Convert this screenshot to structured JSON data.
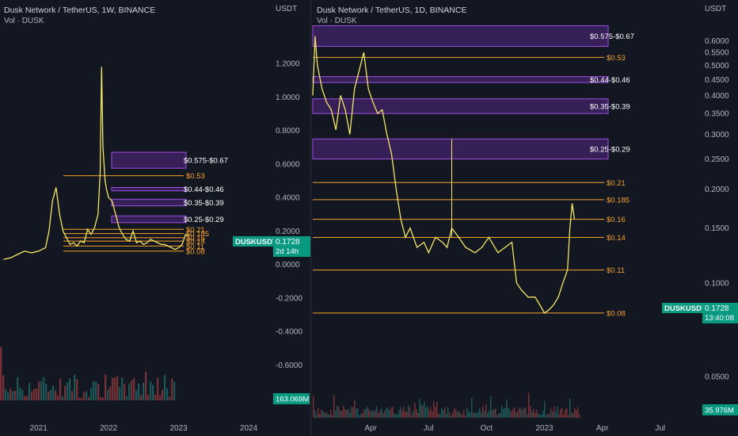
{
  "colors": {
    "background": "#131722",
    "price_line": "#f5e663",
    "level_line": "#f7a127",
    "zone_fill": "#7b2fbe",
    "zone_border": "#9c4fe0",
    "badge": "#089981",
    "vol_up": "#26a69a",
    "vol_down": "#ef5350",
    "axis_text": "#b2b5be"
  },
  "left_chart": {
    "title": "Dusk Network / TetherUS, 1W, BINANCE",
    "subtitle": "Vol · DUSK"
  },
  "right_chart": {
    "title": "Dusk Network / TetherUS, 1D, BINANCE",
    "subtitle": "Vol · DUSK"
  },
  "chart_data": [
    {
      "type": "line",
      "timeframe": "1W",
      "ylabel": "USDT",
      "ylim": [
        -0.65,
        1.3
      ],
      "yticks": [
        1.2,
        1.0,
        0.8,
        0.6,
        0.4,
        0.2,
        0.0,
        -0.2,
        -0.4,
        -0.6
      ],
      "ytick_labels": [
        "1.2000",
        "1.0000",
        "0.8000",
        "0.6000",
        "0.4000",
        "0.2000",
        "0.0000",
        "-0.2000",
        "-0.4000",
        "-0.6000"
      ],
      "xtick_labels": [
        "2021",
        "2022",
        "2023",
        "2024"
      ],
      "x_range": [
        2020.45,
        2024.35
      ],
      "xtick_values": [
        2021.0,
        2022.0,
        2023.0,
        2024.0
      ],
      "series": [
        {
          "x": [
            2020.5,
            2020.6,
            2020.7,
            2020.8,
            2020.9,
            2021.0,
            2021.1,
            2021.15,
            2021.2,
            2021.25,
            2021.3,
            2021.35,
            2021.4,
            2021.45,
            2021.5,
            2021.55,
            2021.6,
            2021.65,
            2021.7,
            2021.75,
            2021.8,
            2021.85,
            2021.88,
            2021.9,
            2021.92,
            2021.95,
            2021.97,
            2022.0,
            2022.05,
            2022.1,
            2022.15,
            2022.2,
            2022.25,
            2022.3,
            2022.35,
            2022.4,
            2022.45,
            2022.5,
            2022.55,
            2022.6,
            2022.65,
            2022.7,
            2022.75,
            2022.8,
            2022.85,
            2022.9,
            2022.95,
            2023.0,
            2023.05,
            2023.1,
            2023.15
          ],
          "values": [
            0.03,
            0.04,
            0.06,
            0.08,
            0.07,
            0.08,
            0.1,
            0.2,
            0.38,
            0.46,
            0.3,
            0.2,
            0.16,
            0.12,
            0.13,
            0.11,
            0.14,
            0.13,
            0.21,
            0.18,
            0.22,
            0.3,
            0.55,
            1.18,
            0.7,
            0.5,
            0.45,
            0.4,
            0.38,
            0.3,
            0.22,
            0.18,
            0.15,
            0.14,
            0.2,
            0.13,
            0.14,
            0.12,
            0.13,
            0.15,
            0.14,
            0.13,
            0.12,
            0.12,
            0.11,
            0.1,
            0.09,
            0.1,
            0.12,
            0.18,
            0.17
          ]
        }
      ],
      "levels": [
        {
          "price": 0.53,
          "label": "$0.53"
        },
        {
          "price": 0.21,
          "label": "$0.21"
        },
        {
          "price": 0.185,
          "label": "$0.185"
        },
        {
          "price": 0.16,
          "label": "$0.16"
        },
        {
          "price": 0.14,
          "label": "$0.14"
        },
        {
          "price": 0.11,
          "label": "$0.11"
        },
        {
          "price": 0.08,
          "label": "$0.08"
        }
      ],
      "zones": [
        {
          "low": 0.575,
          "high": 0.67,
          "label": "$0.575-$0.67"
        },
        {
          "low": 0.44,
          "high": 0.46,
          "label": "$0.44-$0.46"
        },
        {
          "low": 0.35,
          "high": 0.39,
          "label": "$0.35-$0.39"
        },
        {
          "low": 0.25,
          "high": 0.29,
          "label": "$0.25-$0.29"
        }
      ],
      "last_price_badge": {
        "symbol": "DUSKUSDT",
        "price": "0.1728",
        "countdown": "2d 14h"
      },
      "volume_badge": "163.069M"
    },
    {
      "type": "line",
      "timeframe": "1D",
      "ylabel": "USDT",
      "log_scale": true,
      "ylim": [
        0.045,
        0.66
      ],
      "yticks": [
        0.6,
        0.55,
        0.5,
        0.45,
        0.4,
        0.35,
        0.3,
        0.25,
        0.2,
        0.15,
        0.1,
        0.05
      ],
      "ytick_labels": [
        "0.6000",
        "0.5500",
        "0.5000",
        "0.4500",
        "0.4000",
        "0.3500",
        "0.3000",
        "0.2500",
        "0.2000",
        "0.1500",
        "0.1000",
        "0.0500"
      ],
      "xtick_labels": [
        "Apr",
        "Jul",
        "Oct",
        "2023",
        "Apr",
        "Jul"
      ],
      "x_range": [
        2022.0,
        2023.6
      ],
      "xtick_values": [
        2022.25,
        2022.5,
        2022.75,
        2023.0,
        2023.25,
        2023.5
      ],
      "series": [
        {
          "x": [
            2022.0,
            2022.01,
            2022.02,
            2022.04,
            2022.06,
            2022.08,
            2022.1,
            2022.12,
            2022.14,
            2022.16,
            2022.18,
            2022.2,
            2022.22,
            2022.24,
            2022.26,
            2022.28,
            2022.3,
            2022.32,
            2022.34,
            2022.36,
            2022.38,
            2022.4,
            2022.42,
            2022.45,
            2022.48,
            2022.5,
            2022.53,
            2022.56,
            2022.58,
            2022.6,
            2022.63,
            2022.66,
            2022.7,
            2022.73,
            2022.76,
            2022.8,
            2022.83,
            2022.86,
            2022.88,
            2022.9,
            2022.93,
            2022.96,
            2022.98,
            2023.0,
            2023.02,
            2023.04,
            2023.06,
            2023.08,
            2023.1,
            2023.11,
            2023.12,
            2023.13
          ],
          "values": [
            0.4,
            0.62,
            0.5,
            0.42,
            0.38,
            0.36,
            0.31,
            0.4,
            0.36,
            0.3,
            0.42,
            0.48,
            0.55,
            0.42,
            0.38,
            0.35,
            0.36,
            0.3,
            0.26,
            0.2,
            0.16,
            0.14,
            0.15,
            0.13,
            0.135,
            0.125,
            0.14,
            0.135,
            0.13,
            0.15,
            0.14,
            0.13,
            0.125,
            0.13,
            0.14,
            0.125,
            0.13,
            0.135,
            0.1,
            0.095,
            0.09,
            0.09,
            0.085,
            0.08,
            0.082,
            0.085,
            0.09,
            0.1,
            0.11,
            0.15,
            0.18,
            0.16
          ]
        }
      ],
      "spike": {
        "x": 2022.6,
        "high": 0.29
      },
      "levels": [
        {
          "price": 0.53,
          "label": "$0.53"
        },
        {
          "price": 0.21,
          "label": "$0.21"
        },
        {
          "price": 0.185,
          "label": "$0.185"
        },
        {
          "price": 0.16,
          "label": "$0.16"
        },
        {
          "price": 0.14,
          "label": "$0.14"
        },
        {
          "price": 0.11,
          "label": "$0.11"
        },
        {
          "price": 0.08,
          "label": "$0.08"
        }
      ],
      "zones": [
        {
          "low": 0.575,
          "high": 0.67,
          "label": "$0.575-$0.67"
        },
        {
          "low": 0.44,
          "high": 0.46,
          "label": "$0.44-$0.46"
        },
        {
          "low": 0.35,
          "high": 0.39,
          "label": "$0.35-$0.39"
        },
        {
          "low": 0.25,
          "high": 0.29,
          "label": "$0.25-$0.29"
        }
      ],
      "last_price_badge": {
        "symbol": "DUSKUSDT",
        "price": "0.1728",
        "countdown": "13:40:08"
      },
      "volume_badge": "35.976M"
    }
  ]
}
